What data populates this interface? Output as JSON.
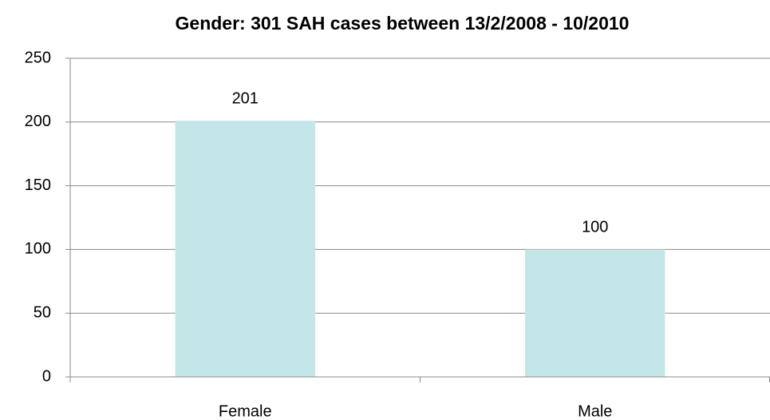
{
  "chart_data": {
    "type": "bar",
    "title": "Gender: 301 SAH cases between 13/2/2008 - 10/2010",
    "categories": [
      "Female",
      "Male"
    ],
    "values": [
      201,
      100
    ],
    "color": "#c3e6e8",
    "ylim": [
      0,
      250
    ],
    "yticks": [
      0,
      50,
      100,
      150,
      200,
      250
    ],
    "grid": true,
    "data_labels": true
  }
}
